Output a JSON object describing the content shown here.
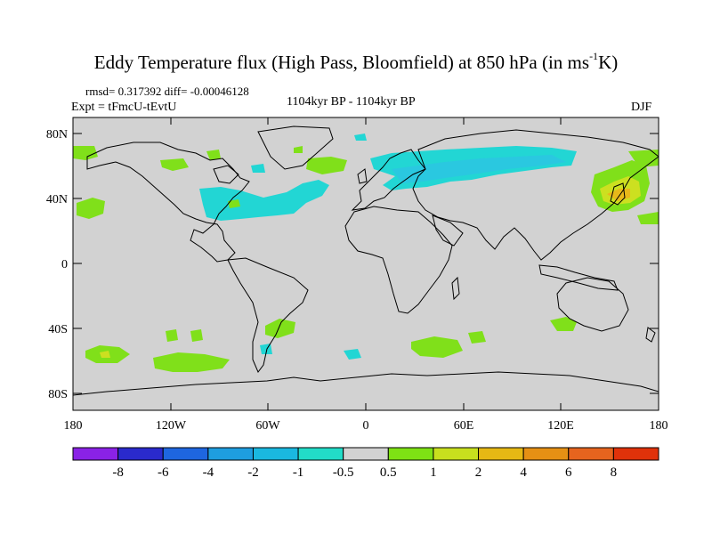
{
  "title": {
    "main": "Eddy Temperature flux (High Pass, Bloomfield) at 850 hPa (in ms",
    "sup": "-1",
    "tail": "K)"
  },
  "stats": "rmsd= 0.317392 diff= -0.00046128",
  "experiment": "Expt = tFmcU-tEvtU",
  "period": "1104kyr BP - 1104kyr BP",
  "season": "DJF",
  "axes": {
    "lat_ticks": [
      "80N",
      "40N",
      "0",
      "40S",
      "80S"
    ],
    "lon_ticks": [
      "180",
      "120W",
      "60W",
      "0",
      "60E",
      "120E",
      "180"
    ]
  },
  "colorbar": {
    "labels": [
      "-8",
      "-6",
      "-4",
      "-2",
      "-1",
      "-0.5",
      "0.5",
      "1",
      "2",
      "4",
      "6",
      "8"
    ],
    "colors": [
      "#8a22e6",
      "#2a2acc",
      "#1e66e0",
      "#1e9ee0",
      "#1ab8e0",
      "#22dcc8",
      "#d2d2d2",
      "#7ee214",
      "#c8e01e",
      "#e6b814",
      "#e69014",
      "#e6641e",
      "#e0320a"
    ]
  },
  "colors": {
    "ocean_land": "#d2d2d2",
    "neg_1": "#22d6d4",
    "neg_2": "#2ac8e0",
    "pos_1": "#80e01a",
    "pos_2": "#cce020",
    "pos_4": "#e8b81a"
  }
}
